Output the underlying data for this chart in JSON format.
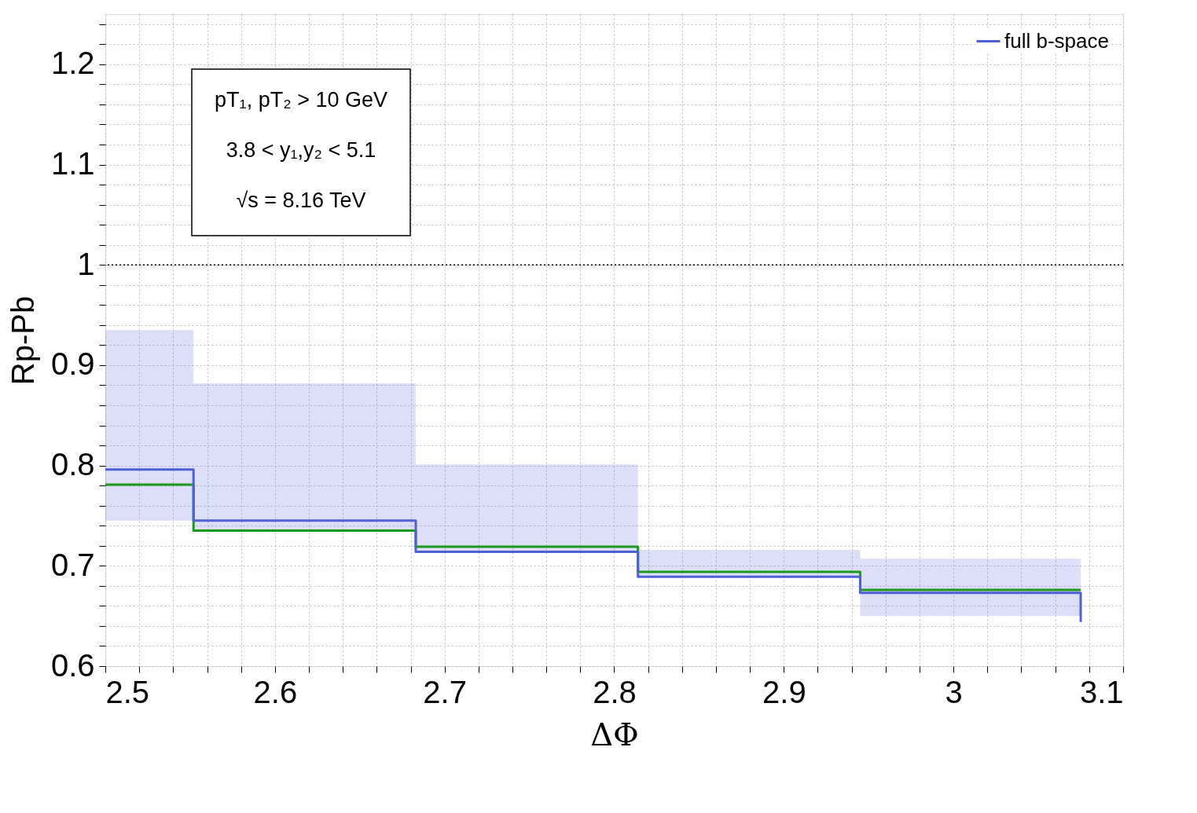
{
  "chart_data": {
    "type": "step",
    "xlabel": "ΔΦ",
    "ylabel": "Rp-Pb",
    "xlim": [
      2.5,
      3.1
    ],
    "ylim": [
      0.6,
      1.25
    ],
    "xticks": [
      2.5,
      {
        "value": 2.52,
        "label": null
      },
      {
        "value": 2.54,
        "label": null
      },
      {
        "value": 2.56,
        "label": null
      },
      {
        "value": 2.58,
        "label": null
      },
      2.6,
      {
        "value": 2.62,
        "label": null
      },
      {
        "value": 2.64,
        "label": null
      },
      {
        "value": 2.66,
        "label": null
      },
      {
        "value": 2.68,
        "label": null
      },
      2.7,
      {
        "value": 2.72,
        "label": null
      },
      {
        "value": 2.74,
        "label": null
      },
      {
        "value": 2.76,
        "label": null
      },
      {
        "value": 2.78,
        "label": null
      },
      2.8,
      {
        "value": 2.82,
        "label": null
      },
      {
        "value": 2.84,
        "label": null
      },
      {
        "value": 2.86,
        "label": null
      },
      {
        "value": 2.88,
        "label": null
      },
      2.9,
      {
        "value": 2.92,
        "label": null
      },
      {
        "value": 2.94,
        "label": null
      },
      {
        "value": 2.96,
        "label": null
      },
      {
        "value": 2.98,
        "label": null
      },
      3,
      {
        "value": 3.02,
        "label": null
      },
      {
        "value": 3.04,
        "label": null
      },
      {
        "value": 3.06,
        "label": null
      },
      {
        "value": 3.08,
        "label": null
      },
      3.1
    ],
    "yticks": [
      0.6,
      {
        "value": 0.62,
        "label": null
      },
      {
        "value": 0.64,
        "label": null
      },
      {
        "value": 0.66,
        "label": null
      },
      {
        "value": 0.68,
        "label": null
      },
      0.7,
      {
        "value": 0.72,
        "label": null
      },
      {
        "value": 0.74,
        "label": null
      },
      {
        "value": 0.76,
        "label": null
      },
      {
        "value": 0.78,
        "label": null
      },
      0.8,
      {
        "value": 0.82,
        "label": null
      },
      {
        "value": 0.84,
        "label": null
      },
      {
        "value": 0.86,
        "label": null
      },
      {
        "value": 0.88,
        "label": null
      },
      0.9,
      {
        "value": 0.92,
        "label": null
      },
      {
        "value": 0.94,
        "label": null
      },
      {
        "value": 0.96,
        "label": null
      },
      {
        "value": 0.98,
        "label": null
      },
      1,
      {
        "value": 1.02,
        "label": null
      },
      {
        "value": 1.04,
        "label": null
      },
      {
        "value": 1.06,
        "label": null
      },
      {
        "value": 1.08,
        "label": null
      },
      1.1,
      {
        "value": 1.12,
        "label": null
      },
      {
        "value": 1.14,
        "label": null
      },
      {
        "value": 1.16,
        "label": null
      },
      {
        "value": 1.18,
        "label": null
      },
      1.2,
      {
        "value": 1.22,
        "label": null
      },
      {
        "value": 1.24,
        "label": null
      }
    ],
    "grid": true,
    "legend": "top right",
    "line_style": "solid",
    "marker": "none",
    "x": [
      2.5,
      2.552,
      2.683,
      2.814,
      2.945,
      3.075
    ],
    "series": [
      {
        "color": "#1a9a1a",
        "values": [
          0.781,
          0.735,
          0.719,
          0.694,
          0.676,
          0.676
        ]
      },
      {
        "name": "full b-space",
        "color": "#4f5fd6",
        "values": [
          0.796,
          0.745,
          0.714,
          0.689,
          0.673,
          0.644
        ],
        "lower": [
          0.745,
          0.735,
          0.714,
          0.689,
          0.65,
          0.65
        ],
        "upper": [
          0.935,
          0.882,
          0.801,
          0.716,
          0.707,
          0.707
        ]
      }
    ],
    "ref_lines": [
      {
        "axis": "y",
        "value": 1,
        "color": "#000000",
        "line_style": "dotted"
      }
    ],
    "annotations": [
      "pT₁, pT₂ > 10 GeV",
      "3.8 < y₁,y₂ < 5.1",
      "√s = 8.16 TeV"
    ]
  }
}
